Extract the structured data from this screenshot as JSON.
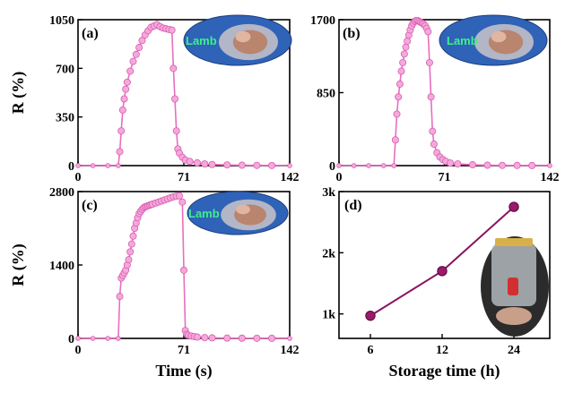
{
  "colors": {
    "response_line": "#e76fc0",
    "response_marker": "#f5a8dc",
    "response_marker_edge": "#d95db0",
    "storage_line": "#8a1460",
    "storage_marker": "#9b1a6c",
    "photo_bg": "#2f63b8"
  },
  "chart_data": [
    {
      "panel": "(a)",
      "type": "scatter",
      "photo_label": "Lamb",
      "ylabel": "R (%)",
      "xlim": [
        0,
        142
      ],
      "ylim": [
        0,
        1050
      ],
      "xticks": [
        "0",
        "71",
        "142"
      ],
      "yticks": [
        "0",
        "350",
        "700",
        "1050"
      ],
      "x": [
        0,
        10,
        20,
        27,
        28,
        29,
        30,
        31,
        32,
        33,
        35,
        37,
        39,
        41,
        43,
        45,
        47,
        49,
        51,
        53,
        55,
        57,
        59,
        61,
        63,
        64,
        65,
        66,
        67,
        68,
        70,
        72,
        75,
        80,
        85,
        90,
        100,
        110,
        120,
        130,
        142
      ],
      "y": [
        0,
        0,
        0,
        0,
        100,
        250,
        400,
        480,
        550,
        600,
        680,
        750,
        800,
        850,
        900,
        940,
        970,
        995,
        1005,
        1015,
        1000,
        990,
        985,
        980,
        975,
        700,
        480,
        250,
        120,
        90,
        60,
        40,
        30,
        20,
        12,
        8,
        5,
        3,
        2,
        1,
        0
      ]
    },
    {
      "panel": "(b)",
      "type": "scatter",
      "photo_label": "Lamb",
      "ylabel": "",
      "xlim": [
        0,
        142
      ],
      "ylim": [
        0,
        1700
      ],
      "xticks": [
        "0",
        "71",
        "142"
      ],
      "yticks": [
        "0",
        "850",
        "1700"
      ],
      "x": [
        0,
        10,
        20,
        30,
        37,
        38,
        39,
        40,
        41,
        42,
        43,
        44,
        45,
        46,
        47,
        48,
        49,
        50,
        51,
        52,
        53,
        54,
        55,
        56,
        57,
        58,
        59,
        60,
        61,
        62,
        63,
        64,
        66,
        68,
        70,
        72,
        75,
        80,
        90,
        100,
        110,
        120,
        130,
        142
      ],
      "y": [
        0,
        0,
        0,
        0,
        0,
        300,
        600,
        800,
        950,
        1100,
        1200,
        1300,
        1380,
        1450,
        1520,
        1580,
        1630,
        1660,
        1680,
        1690,
        1690,
        1680,
        1670,
        1660,
        1650,
        1630,
        1600,
        1560,
        1200,
        800,
        400,
        250,
        150,
        100,
        70,
        50,
        30,
        20,
        10,
        5,
        3,
        2,
        1,
        0
      ]
    },
    {
      "panel": "(c)",
      "type": "scatter",
      "photo_label": "Lamb",
      "ylabel": "R (%)",
      "xlim": [
        0,
        142
      ],
      "ylim": [
        0,
        2800
      ],
      "xticks": [
        "0",
        "71",
        "142"
      ],
      "yticks": [
        "0",
        "1400",
        "2800"
      ],
      "x": [
        0,
        10,
        20,
        27,
        28,
        29,
        30,
        31,
        32,
        33,
        34,
        35,
        36,
        37,
        38,
        39,
        40,
        41,
        42,
        43,
        44,
        45,
        46,
        47,
        48,
        49,
        50,
        52,
        54,
        56,
        58,
        60,
        62,
        64,
        66,
        68,
        70,
        71,
        72,
        73,
        74,
        76,
        78,
        80,
        85,
        90,
        100,
        110,
        120,
        130,
        142
      ],
      "y": [
        0,
        0,
        0,
        0,
        800,
        1150,
        1200,
        1250,
        1300,
        1400,
        1500,
        1650,
        1800,
        1950,
        2100,
        2200,
        2300,
        2380,
        2420,
        2460,
        2490,
        2510,
        2520,
        2530,
        2540,
        2550,
        2560,
        2580,
        2600,
        2620,
        2640,
        2660,
        2680,
        2700,
        2710,
        2720,
        2600,
        1300,
        150,
        80,
        60,
        45,
        35,
        25,
        15,
        10,
        6,
        4,
        3,
        2,
        0
      ]
    },
    {
      "panel": "(d)",
      "type": "line",
      "categories": [
        "6",
        "12",
        "24"
      ],
      "values": [
        0.97,
        1.7,
        2.75
      ],
      "xlabel": "Storage time (h)",
      "ylabel": "",
      "ylim": [
        0.6,
        3.0
      ],
      "yticks": [
        "1k",
        "2k",
        "3k"
      ]
    }
  ],
  "shared": {
    "xlabel": "Time (s)"
  }
}
